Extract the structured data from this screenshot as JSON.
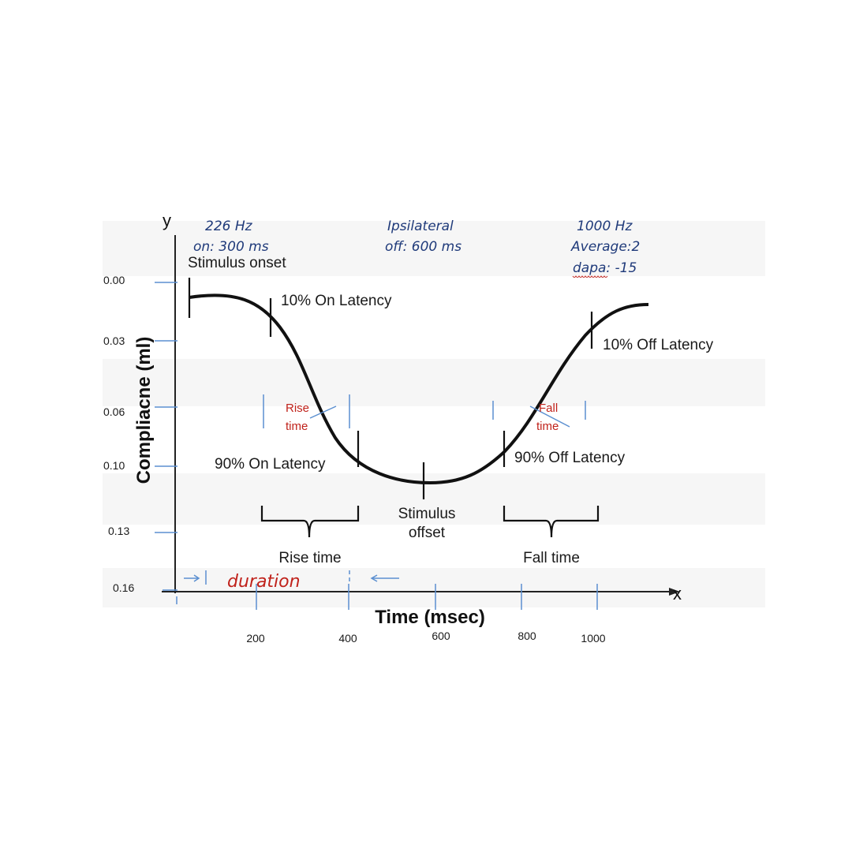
{
  "settings": {
    "left": [
      "226 Hz",
      "on: 300 ms"
    ],
    "center": [
      "Ipsilateral",
      "off: 600 ms"
    ],
    "right": [
      "1000 Hz",
      "Average:2",
      "dapa: -15"
    ]
  },
  "axes": {
    "x_letter": "x",
    "y_letter": "y",
    "x_title": "Time (msec)",
    "y_title": "Compliacne (ml)",
    "x_ticks": [
      "200",
      "400",
      "600",
      "800",
      "1000"
    ],
    "y_ticks": [
      "0.00",
      "0.03",
      "0.06",
      "0.10",
      "0.13",
      "0.16"
    ]
  },
  "annotations": {
    "stimulus_onset": "Stimulus onset",
    "on_latency_10": "10% On Latency",
    "off_latency_10": "10% Off Latency",
    "on_latency_90": "90% On Latency",
    "off_latency_90": "90% Off Latency",
    "stimulus_offset": [
      "Stimulus",
      "offset"
    ],
    "rise_time": "Rise time",
    "fall_time": "Fall time",
    "rise_small": [
      "Rise",
      "time"
    ],
    "fall_small": [
      "Fall",
      "time"
    ],
    "duration": "duration"
  },
  "colors": {
    "curve": "#111111",
    "grid_tick": "#5b8fd0",
    "blue_text": "#1f3a7a",
    "red_text": "#c0221b"
  }
}
